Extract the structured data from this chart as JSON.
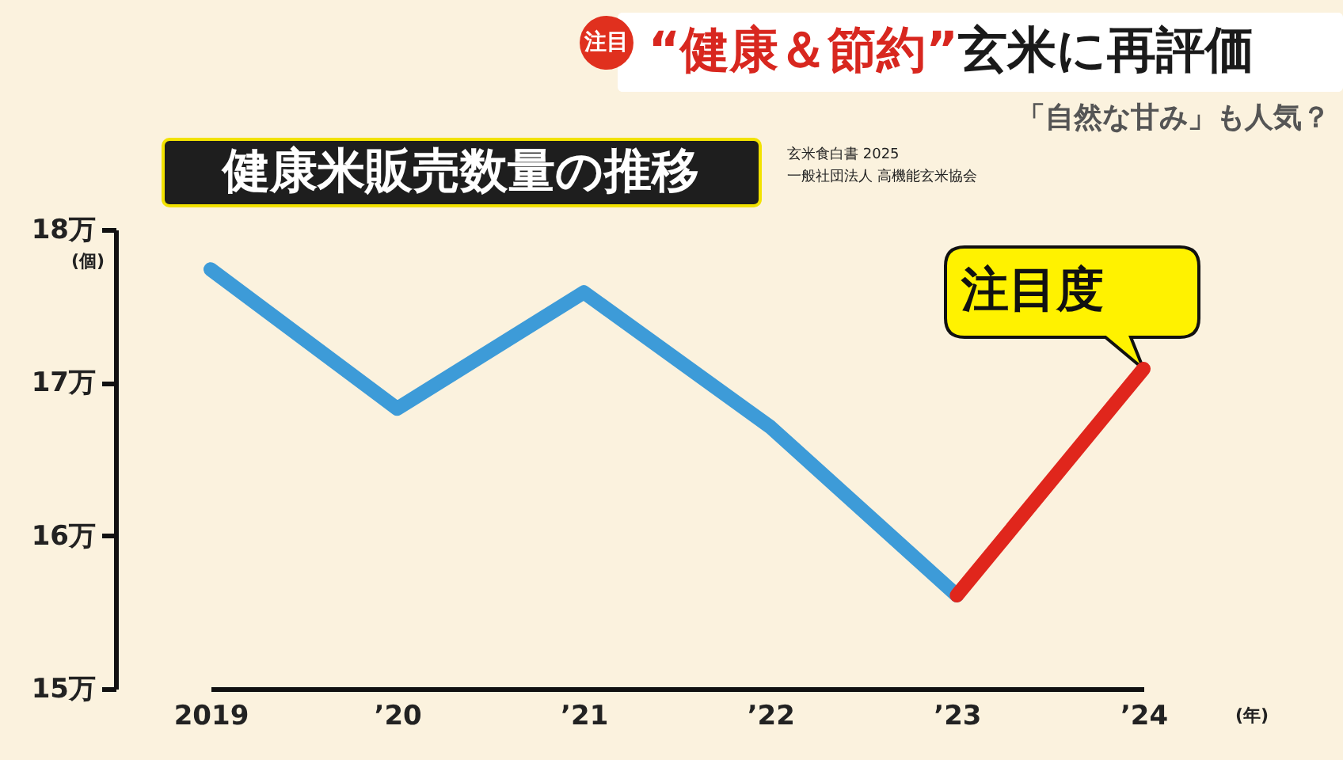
{
  "chart_data": {
    "type": "line",
    "title": "健康米販売数量の推移",
    "subtitle": "「自然な甘み」も人気？",
    "xlabel": "(年)",
    "ylabel": "(個)",
    "categories": [
      "2019",
      "’20",
      "’21",
      "’22",
      "’23",
      "’24"
    ],
    "series": [
      {
        "color": "#3d9bd8",
        "values": [
          17.74,
          16.83,
          17.59,
          16.71,
          15.61,
          null
        ]
      },
      {
        "color": "#e0261c",
        "values": [
          null,
          null,
          null,
          null,
          15.61,
          17.09
        ]
      }
    ],
    "ylim": [
      15,
      18
    ],
    "yticks": [
      {
        "value": 15,
        "label": "15万"
      },
      {
        "value": 16,
        "label": "16万"
      },
      {
        "value": 17,
        "label": "17万"
      },
      {
        "value": 18,
        "label": "18万"
      }
    ],
    "line_style": "solid",
    "annotations": [
      "注目",
      "“健康＆節約”",
      "玄米に再評価",
      "玄米食白書 2025",
      "一般社団法人 高機能玄米協会",
      {
        "text": "注目度",
        "x": "’24",
        "y": 17.09
      }
    ]
  }
}
